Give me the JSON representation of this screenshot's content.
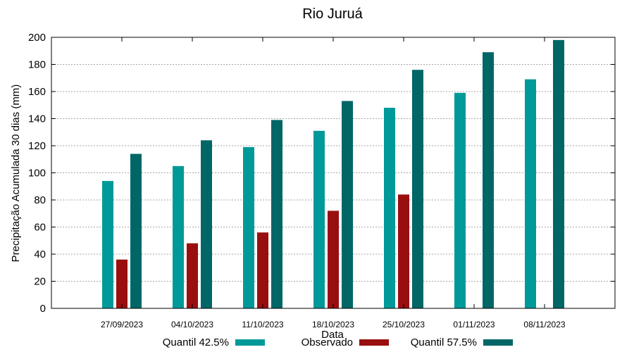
{
  "chart_data": {
    "type": "bar",
    "title": "Rio Juruá",
    "xlabel": "Data",
    "ylabel": "Precipitação Acumulada 30 dias (mm)",
    "ylim": [
      0,
      200
    ],
    "yticks": [
      0,
      20,
      40,
      60,
      80,
      100,
      120,
      140,
      160,
      180,
      200
    ],
    "grid": true,
    "legend": "bottom",
    "categories": [
      "27/09/2023",
      "04/10/2023",
      "11/10/2023",
      "18/10/2023",
      "25/10/2023",
      "01/11/2023",
      "08/11/2023"
    ],
    "series": [
      {
        "name": "Quantil 42.5%",
        "color": "#009999",
        "values": [
          94,
          105,
          119,
          131,
          148,
          159,
          169
        ]
      },
      {
        "name": "Observado",
        "color": "#990f0f",
        "values": [
          36,
          48,
          56,
          72,
          84,
          null,
          null
        ]
      },
      {
        "name": "Quantil 57.5%",
        "color": "#006666",
        "values": [
          114,
          124,
          139,
          153,
          176,
          189,
          198
        ]
      }
    ]
  }
}
